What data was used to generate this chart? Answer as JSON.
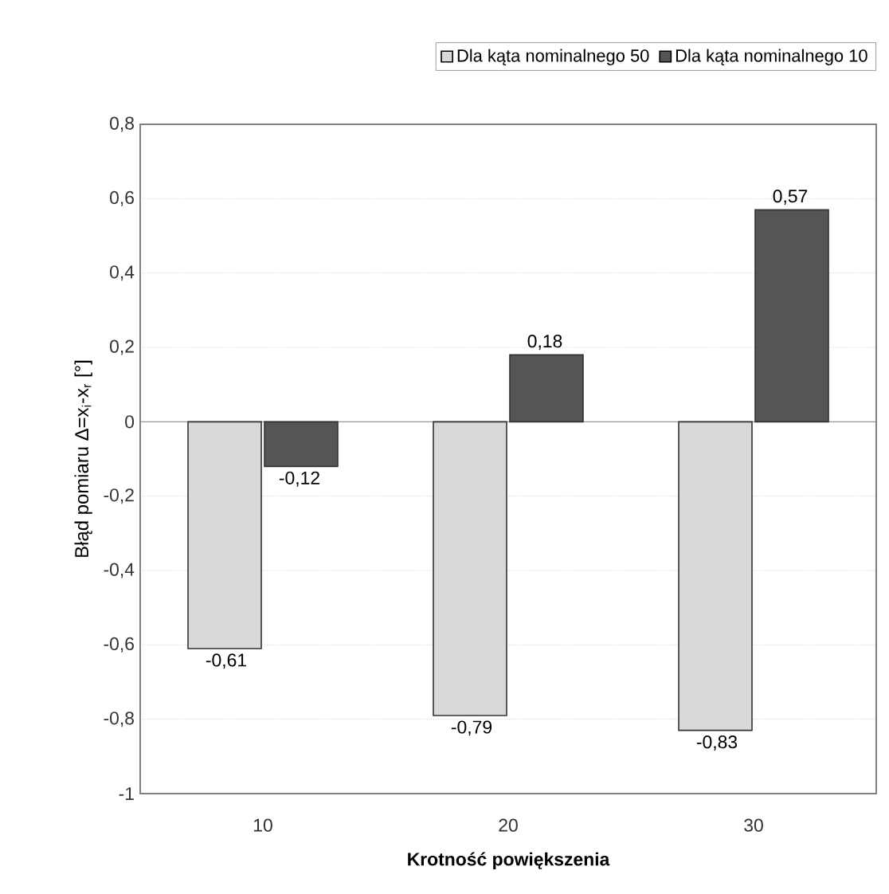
{
  "chart_data": {
    "type": "bar",
    "xlabel": "Krotność powiększenia",
    "ylabel": "Błąd pomiaru Δ=x$_{i}$-x$_{r}$ [°]",
    "categories": [
      "10",
      "20",
      "30"
    ],
    "series": [
      {
        "name": "Dla kąta nominalnego 50",
        "color": "#d9d9d9",
        "values": [
          -0.61,
          -0.79,
          -0.83
        ],
        "value_labels": [
          "-0,61",
          "-0,79",
          "-0,83"
        ]
      },
      {
        "name": "Dla kąta nominalnego 10",
        "color": "#555555",
        "values": [
          -0.12,
          0.18,
          0.57
        ],
        "value_labels": [
          "-0,12",
          "0,18",
          "0,57"
        ]
      }
    ],
    "ylim": [
      -1,
      0.8
    ],
    "yticks": [
      {
        "value": -1,
        "label": "-1"
      },
      {
        "value": -0.8,
        "label": "-0,8"
      },
      {
        "value": -0.6,
        "label": "-0,6"
      },
      {
        "value": -0.4,
        "label": "-0,4"
      },
      {
        "value": -0.2,
        "label": "-0,2"
      },
      {
        "value": 0,
        "label": "0"
      },
      {
        "value": 0.2,
        "label": "0,2"
      },
      {
        "value": 0.4,
        "label": "0,4"
      },
      {
        "value": 0.6,
        "label": "0,6"
      },
      {
        "value": 0.8,
        "label": "0,8"
      }
    ],
    "grid": "y",
    "legend": "top"
  }
}
